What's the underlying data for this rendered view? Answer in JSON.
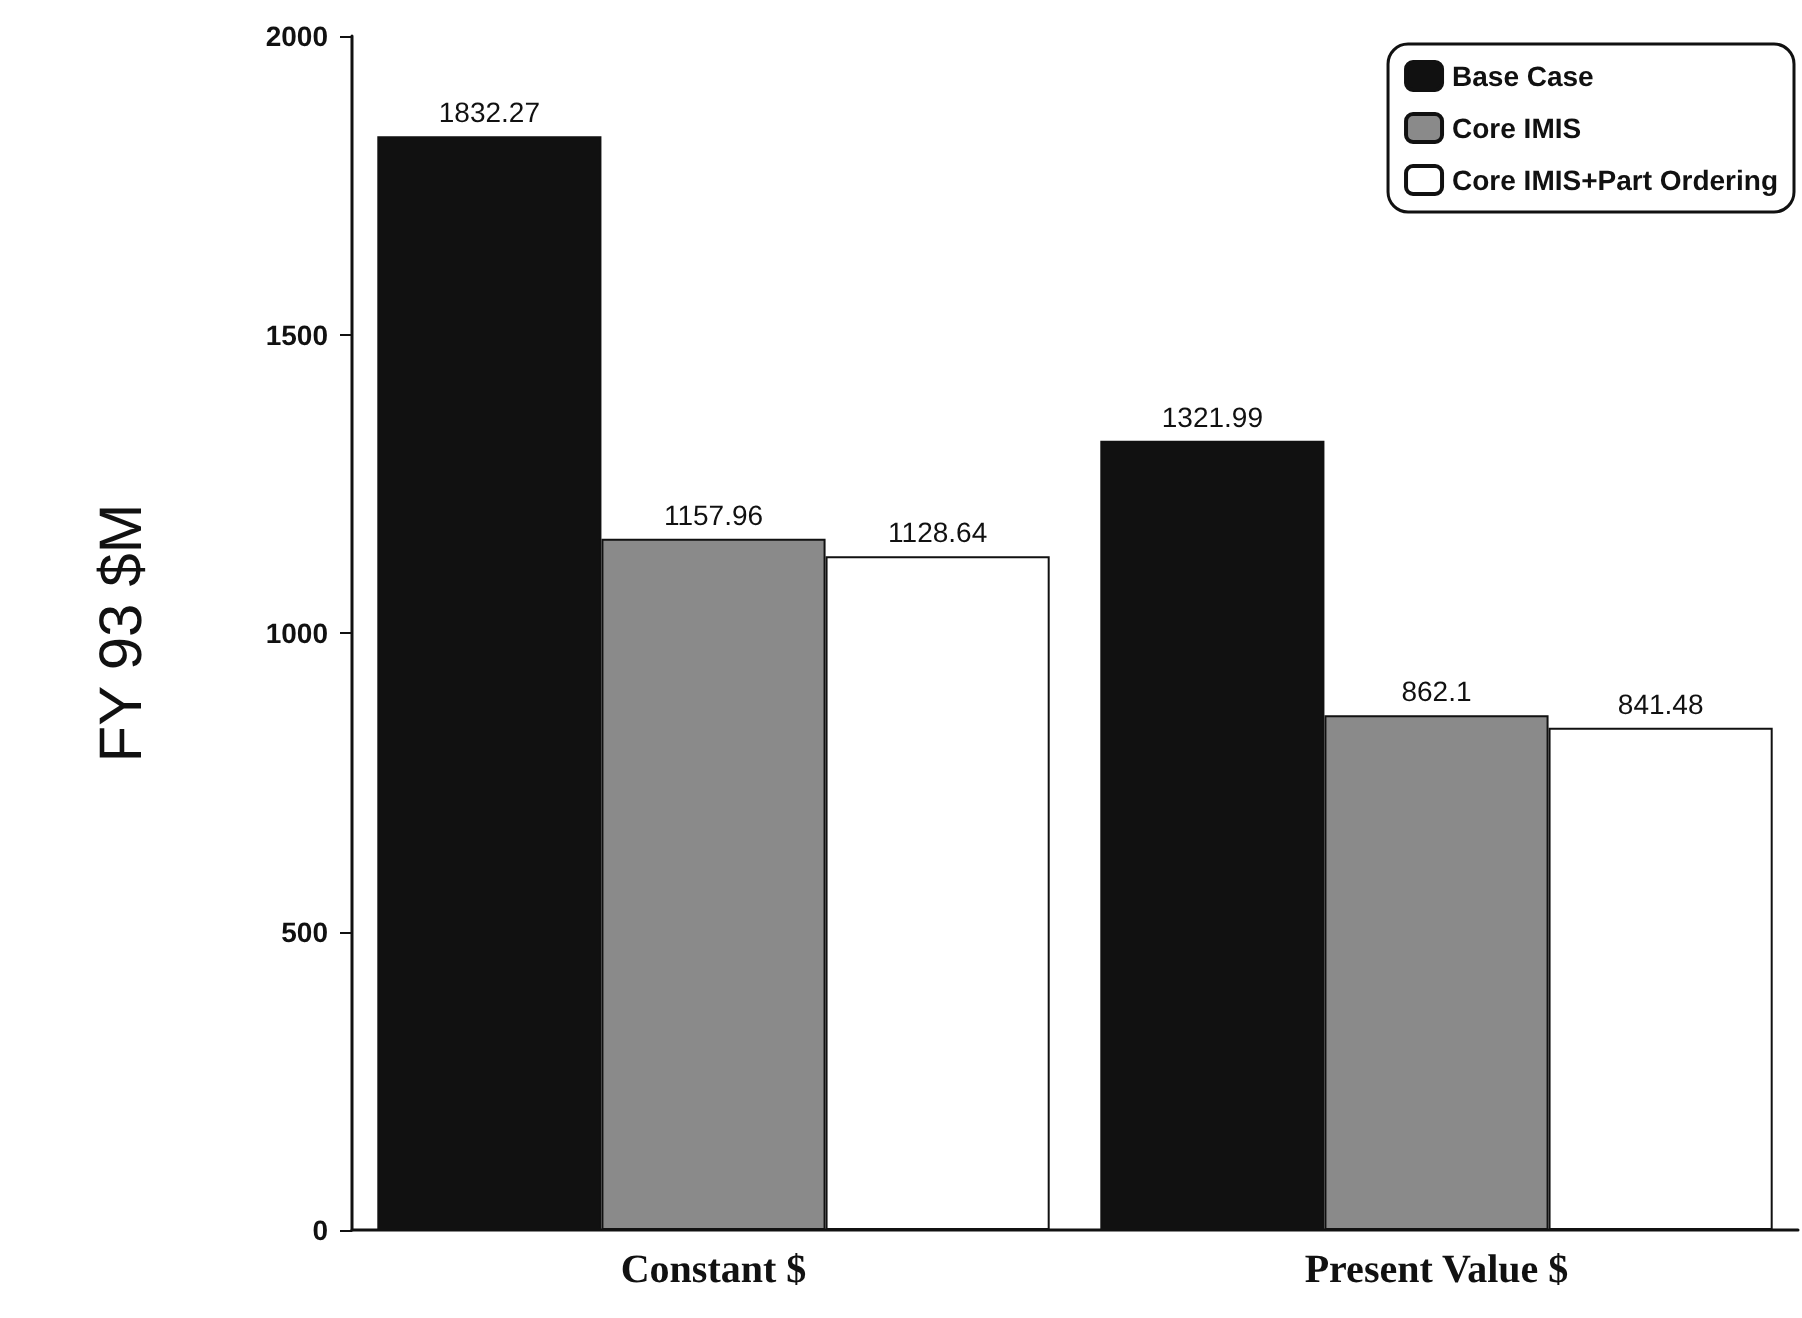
{
  "chart_data": {
    "type": "bar",
    "categories": [
      "Constant $",
      "Present Value $"
    ],
    "ylabel": "FY 93 $M",
    "ylim": [
      0,
      2000
    ],
    "yticks": [
      0,
      500,
      1000,
      1500,
      2000
    ],
    "series": [
      {
        "name": "Base Case",
        "color": "#111111",
        "values": [
          1832.27,
          1321.99
        ]
      },
      {
        "name": "Core IMIS",
        "color": "#8a8a8a",
        "values": [
          1157.96,
          862.1
        ]
      },
      {
        "name": "Core IMIS+Part Ordering",
        "color": "#ffffff",
        "values": [
          1128.64,
          841.48
        ]
      }
    ],
    "data_labels": true,
    "legend": "top right",
    "grid": false
  }
}
